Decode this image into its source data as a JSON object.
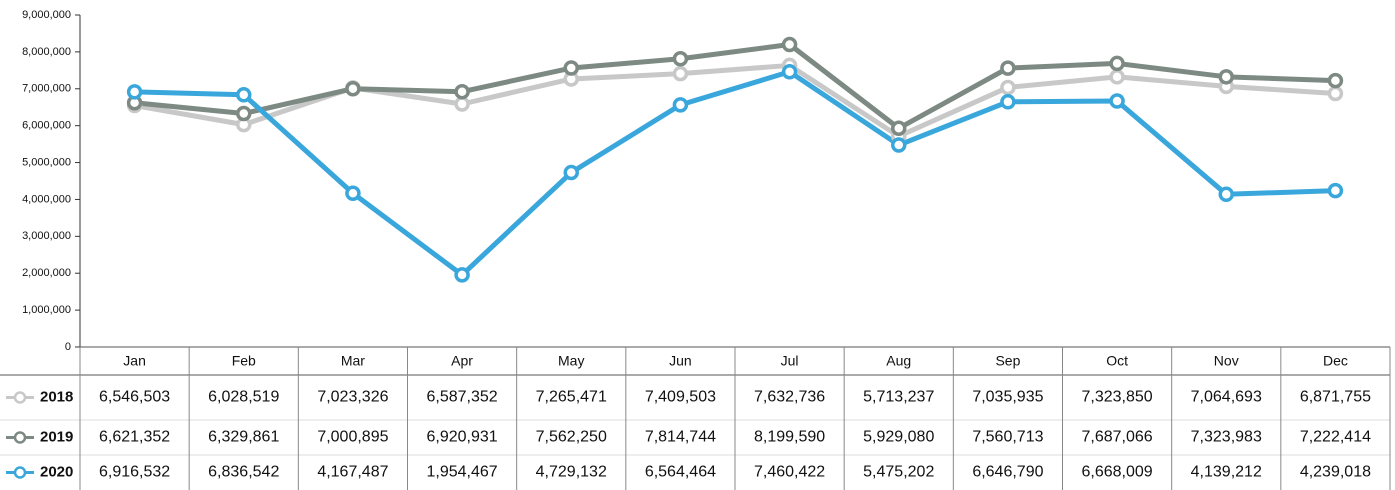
{
  "chart_data": {
    "type": "line",
    "categories": [
      "Jan",
      "Feb",
      "Mar",
      "Apr",
      "May",
      "Jun",
      "Jul",
      "Aug",
      "Sep",
      "Oct",
      "Nov",
      "Dec"
    ],
    "series": [
      {
        "name": "2018",
        "color": "#c8c8c8",
        "text_color": "#111111",
        "values": [
          6546503,
          6028519,
          7023326,
          6587352,
          7265471,
          7409503,
          7632736,
          5713237,
          7035935,
          7323850,
          7064693,
          6871755
        ],
        "value_labels": [
          "6,546,503",
          "6,028,519",
          "7,023,326",
          "6,587,352",
          "7,265,471",
          "7,409,503",
          "7,632,736",
          "5,713,237",
          "7,035,935",
          "7,323,850",
          "7,064,693",
          "6,871,755"
        ]
      },
      {
        "name": "2019",
        "color": "#7d8983",
        "text_color": "#111111",
        "values": [
          6621352,
          6329861,
          7000895,
          6920931,
          7562250,
          7814744,
          8199590,
          5929080,
          7560713,
          7687066,
          7323983,
          7222414
        ],
        "value_labels": [
          "6,621,352",
          "6,329,861",
          "7,000,895",
          "6,920,931",
          "7,562,250",
          "7,814,744",
          "8,199,590",
          "5,929,080",
          "7,560,713",
          "7,687,066",
          "7,323,983",
          "7,222,414"
        ]
      },
      {
        "name": "2020",
        "color": "#3aa7dc",
        "text_color": "#29a9e0",
        "values": [
          6916532,
          6836542,
          4167487,
          1954467,
          4729132,
          6564464,
          7460422,
          5475202,
          6646790,
          6668009,
          4139212,
          4239018
        ],
        "value_labels": [
          "6,916,532",
          "6,836,542",
          "4,167,487",
          "1,954,467",
          "4,729,132",
          "6,564,464",
          "7,460,422",
          "5,475,202",
          "6,646,790",
          "6,668,009",
          "4,139,212",
          "4,239,018"
        ]
      }
    ],
    "ylim": [
      0,
      9000000
    ],
    "yticks": [
      {
        "value": 0,
        "label": "0"
      },
      {
        "value": 1000000,
        "label": "1,000,000"
      },
      {
        "value": 2000000,
        "label": "2,000,000"
      },
      {
        "value": 3000000,
        "label": "3,000,000"
      },
      {
        "value": 4000000,
        "label": "4,000,000"
      },
      {
        "value": 5000000,
        "label": "5,000,000"
      },
      {
        "value": 6000000,
        "label": "6,000,000"
      },
      {
        "value": 7000000,
        "label": "7,000,000"
      },
      {
        "value": 8000000,
        "label": "8,000,000"
      },
      {
        "value": 9000000,
        "label": "9,000,000"
      }
    ]
  }
}
